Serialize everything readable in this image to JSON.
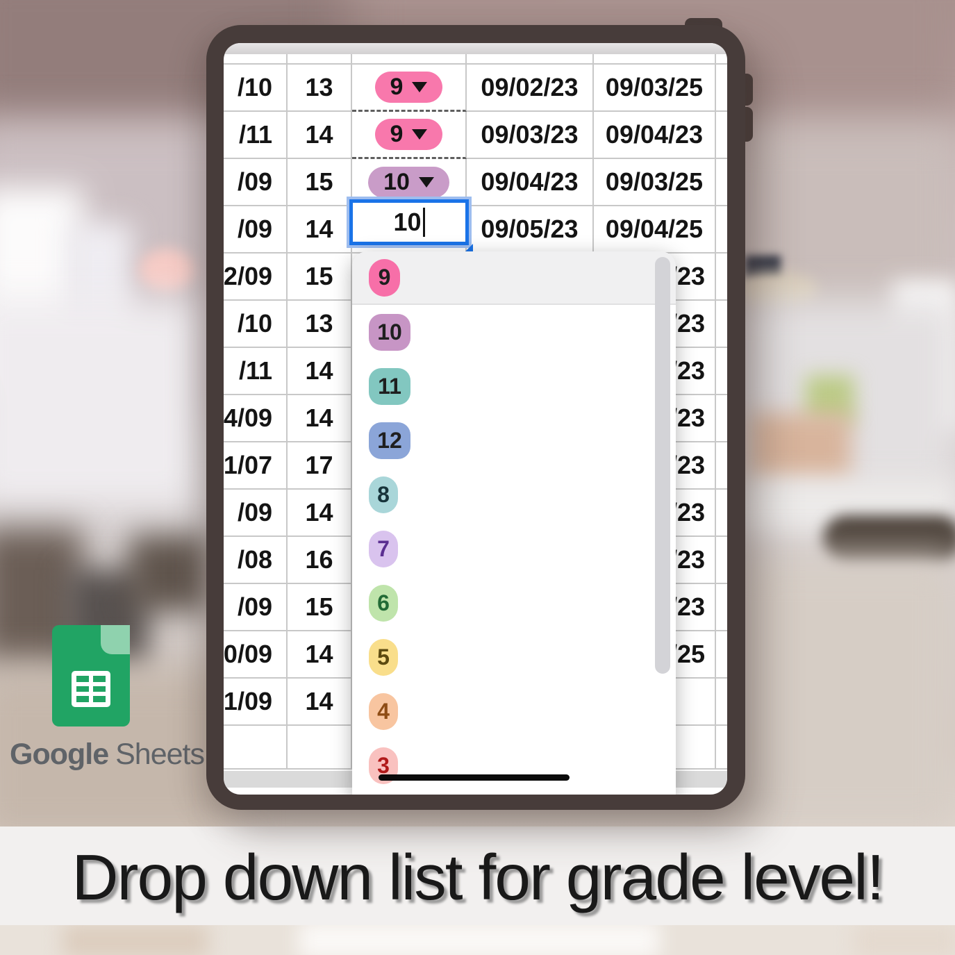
{
  "caption": {
    "text": "Drop down list for grade level!"
  },
  "brand": {
    "name_primary": "Google",
    "name_secondary": "Sheets"
  },
  "colors": {
    "accent_blue": "#1A73E8",
    "sheets_green": "#21A464",
    "sheets_green_light": "#8FD2AE",
    "tablet_frame": "#473C3A"
  },
  "spreadsheet": {
    "editor": {
      "value": "10"
    },
    "rows": [
      {
        "birthdate": "/10",
        "age": "13",
        "kind": "chip",
        "grade": "9",
        "chip_bg": "#F878AC",
        "chip_fg": "#141414",
        "dashed": true,
        "date_start": "09/02/23",
        "date_end": "09/03/25",
        "end_align": "center"
      },
      {
        "birthdate": "/11",
        "age": "14",
        "kind": "chip",
        "grade": "9",
        "chip_bg": "#F878AC",
        "chip_fg": "#141414",
        "dashed": true,
        "date_start": "09/03/23",
        "date_end": "09/04/23",
        "end_align": "center"
      },
      {
        "birthdate": "/09",
        "age": "15",
        "kind": "chip",
        "grade": "10",
        "chip_bg": "#C99CC8",
        "chip_fg": "#141414",
        "dashed": false,
        "date_start": "09/04/23",
        "date_end": "09/03/25",
        "end_align": "center"
      },
      {
        "birthdate": "/09",
        "age": "14",
        "kind": "editor",
        "date_start": "09/05/23",
        "date_end": "09/04/25",
        "end_align": "center"
      },
      {
        "birthdate": "2/09",
        "age": "15",
        "kind": "plain",
        "date_start": "",
        "date_end": "/23",
        "end_align": "right"
      },
      {
        "birthdate": "/10",
        "age": "13",
        "kind": "plain",
        "date_start": "",
        "date_end": "/23",
        "end_align": "right"
      },
      {
        "birthdate": "/11",
        "age": "14",
        "kind": "plain",
        "date_start": "",
        "date_end": "/23",
        "end_align": "right"
      },
      {
        "birthdate": "4/09",
        "age": "14",
        "kind": "plain",
        "date_start": "",
        "date_end": "/23",
        "end_align": "right"
      },
      {
        "birthdate": "1/07",
        "age": "17",
        "kind": "plain",
        "date_start": "",
        "date_end": "/23",
        "end_align": "right"
      },
      {
        "birthdate": "/09",
        "age": "14",
        "kind": "plain",
        "date_start": "",
        "date_end": "/23",
        "end_align": "right"
      },
      {
        "birthdate": "/08",
        "age": "16",
        "kind": "plain",
        "date_start": "",
        "date_end": "/23",
        "end_align": "right"
      },
      {
        "birthdate": "/09",
        "age": "15",
        "kind": "plain",
        "date_start": "",
        "date_end": "/23",
        "end_align": "right"
      },
      {
        "birthdate": "0/09",
        "age": "14",
        "kind": "plain",
        "date_start": "",
        "date_end": "/25",
        "end_align": "right"
      },
      {
        "birthdate": "1/09",
        "age": "14",
        "kind": "plain",
        "date_start": "",
        "date_end": "",
        "end_align": "right"
      },
      {
        "birthdate": "",
        "age": "",
        "kind": "plain",
        "date_start": "",
        "date_end": "",
        "end_align": "center"
      }
    ]
  },
  "dropdown": {
    "items": [
      {
        "label": "9",
        "bg": "#F76FA8",
        "fg": "#1F1F1F",
        "shape": "oval-wide",
        "selected": true
      },
      {
        "label": "10",
        "bg": "#C795C5",
        "fg": "#1F1F1F",
        "shape": "square",
        "selected": false
      },
      {
        "label": "11",
        "bg": "#82C7C0",
        "fg": "#1F1F1F",
        "shape": "square",
        "selected": false
      },
      {
        "label": "12",
        "bg": "#8BA5D8",
        "fg": "#1F1F1F",
        "shape": "square",
        "selected": false
      },
      {
        "label": "8",
        "bg": "#A9D6D9",
        "fg": "#17343B",
        "shape": "oval",
        "selected": false
      },
      {
        "label": "7",
        "bg": "#D9C3EE",
        "fg": "#5B2F91",
        "shape": "oval",
        "selected": false
      },
      {
        "label": "6",
        "bg": "#BFE4AB",
        "fg": "#226B35",
        "shape": "oval",
        "selected": false
      },
      {
        "label": "5",
        "bg": "#F9DE8B",
        "fg": "#5C4A10",
        "shape": "oval",
        "selected": false
      },
      {
        "label": "4",
        "bg": "#F8C5A0",
        "fg": "#8F4D15",
        "shape": "oval",
        "selected": false
      },
      {
        "label": "3",
        "bg": "#F9C1BF",
        "fg": "#B11A1A",
        "shape": "oval",
        "selected": false
      }
    ]
  }
}
